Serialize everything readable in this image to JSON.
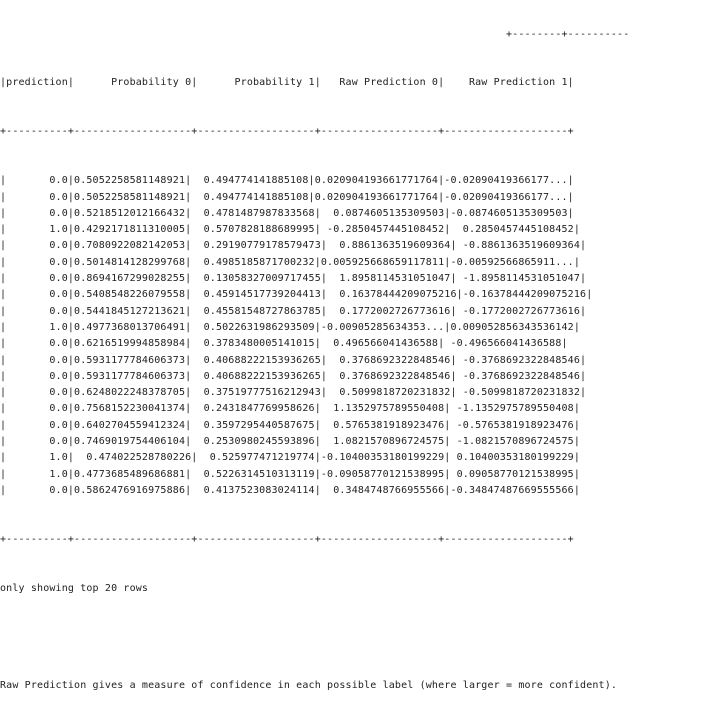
{
  "table": {
    "top_border": "                                                                                  +--------+----------",
    "header": "|prediction|      Probability 0|      Probability 1|   Raw Prediction 0|    Raw Prediction 1|",
    "separator": "+----------+-------------------+-------------------+-------------------+--------------------+",
    "rows": [
      "|       0.0|0.5052258581148921|  0.494774141885108|0.020904193661771764|-0.02090419366177...|",
      "|       0.0|0.5052258581148921|  0.494774141885108|0.020904193661771764|-0.02090419366177...|",
      "|       0.0|0.5218512012166432|  0.4781487987833568|  0.0874605135309503|-0.0874605135309503|",
      "|       1.0|0.4292171811310005|  0.5707828188689995| -0.2850457445108452|  0.2850457445108452|",
      "|       0.0|0.7080922082142053|  0.29190779178579473|  0.8861363519609364| -0.8861363519609364|",
      "|       0.0|0.5014814128299768|  0.4985185871700232|0.005925668659117811|-0.00592566865911...|",
      "|       0.0|0.8694167299028255|  0.13058327009717455|  1.8958114531051047| -1.8958114531051047|",
      "|       0.0|0.5408548226079558|  0.45914517739204413|  0.16378444209075216|-0.16378444209075216|",
      "|       0.0|0.5441845127213621|  0.45581548727863785|  0.1772002726773616| -0.1772002726773616|",
      "|       1.0|0.4977368013706491|  0.5022631986293509|-0.00905285634353...|0.009052856343536142|",
      "|       0.0|0.6216519994858984|  0.3783480005141015|  0.496566041436588| -0.496566041436588|",
      "|       0.0|0.5931177784606373|  0.40688222153936265|  0.3768692322848546| -0.3768692322848546|",
      "|       0.0|0.5931177784606373|  0.40688222153936265|  0.3768692322848546| -0.3768692322848546|",
      "|       0.0|0.6248022248378705|  0.37519777516212943|  0.5099818720231832| -0.5099818720231832|",
      "|       0.0|0.7568152230041374|  0.2431847769958626|  1.1352975789550408| -1.1352975789550408|",
      "|       0.0|0.6402704559412324|  0.3597295440587675|  0.5765381918923476| -0.5765381918923476|",
      "|       0.0|0.7469019754406104|  0.2530980245593896|  1.0821570896724575| -1.0821570896724575|",
      "|       1.0|  0.474022528780226|  0.525977471219774|-0.10400353180199229| 0.10400353180199229|",
      "|       1.0|0.4773685489686881|  0.5226314510313119|-0.09058770121538995| 0.09058770121538995|",
      "|       0.0|0.5862476916975886|  0.4137523083024114|  0.3484748766955566|-0.34847487669555566|"
    ],
    "bottom_border": "+----------+-------------------+-------------------+-------------------+--------------------+"
  },
  "footer": "only showing top 20 rows",
  "note": "Raw Prediction gives a measure of confidence in each possible label (where larger = more confident)."
}
